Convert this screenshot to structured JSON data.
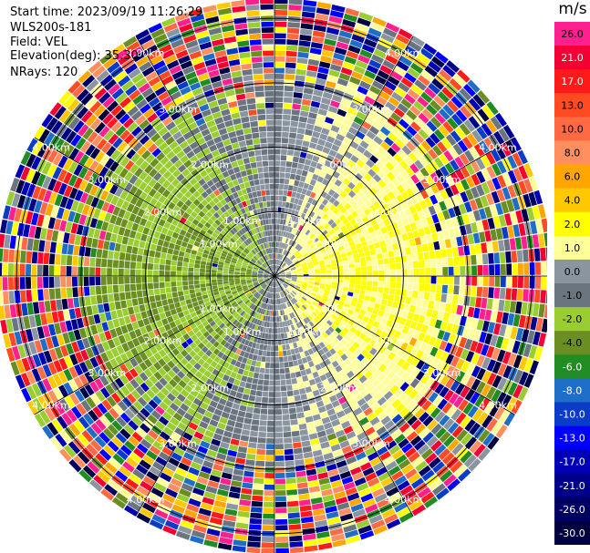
{
  "header": {
    "start_time": "Start time: 2023/09/19 11:26:29",
    "instrument": "WLS200s-181",
    "field": "Field: VEL",
    "elevation": "Elevation(deg): 35.30",
    "nrays": "NRays: 120"
  },
  "colorbar": {
    "unit": "m/s",
    "bins": [
      {
        "label": "26.0",
        "color": "#ff1f8f"
      },
      {
        "label": "21.0",
        "color": "#f40032"
      },
      {
        "label": "17.0",
        "color": "#ff1a1a"
      },
      {
        "label": "13.0",
        "color": "#ff4a22"
      },
      {
        "label": "10.0",
        "color": "#ff6a45"
      },
      {
        "label": "8.0",
        "color": "#ff8f5e"
      },
      {
        "label": "6.0",
        "color": "#ffa600"
      },
      {
        "label": "4.0",
        "color": "#ffc800"
      },
      {
        "label": "2.0",
        "color": "#ffff00"
      },
      {
        "label": "1.0",
        "color": "#ffff99"
      },
      {
        "label": "0.0",
        "color": "#8a95a0"
      },
      {
        "label": "-1.0",
        "color": "#6b7580"
      },
      {
        "label": "-2.0",
        "color": "#9acd32"
      },
      {
        "label": "-4.0",
        "color": "#6b8e23"
      },
      {
        "label": "-6.0",
        "color": "#228b22"
      },
      {
        "label": "-8.0",
        "color": "#1e6ec8"
      },
      {
        "label": "-10.0",
        "color": "#0a3cc8"
      },
      {
        "label": "-13.0",
        "color": "#0000ff"
      },
      {
        "label": "-17.0",
        "color": "#0000b4"
      },
      {
        "label": "-21.0",
        "color": "#00008b"
      },
      {
        "label": "-26.0",
        "color": "#000064"
      },
      {
        "label": "-30.0",
        "color": "#000040"
      }
    ]
  },
  "chart_data": {
    "type": "heatmap",
    "projection": "polar PPI",
    "field": "VEL",
    "nrays": 120,
    "range_rings_km": [
      1.0,
      2.0,
      3.0,
      4.0
    ],
    "ring_labels": [
      "1.00km",
      "2.00km",
      "3.00km",
      "4.00km"
    ],
    "max_range_km": 4.3,
    "radial_lines_deg": [
      0,
      30,
      60,
      90,
      120,
      150,
      180,
      210,
      240,
      270,
      300,
      330
    ],
    "pattern": "inner rings show positive (yellow) velocities to the east and negative (green) velocities to the west; beyond about 3 km the field is noise of all colors"
  }
}
